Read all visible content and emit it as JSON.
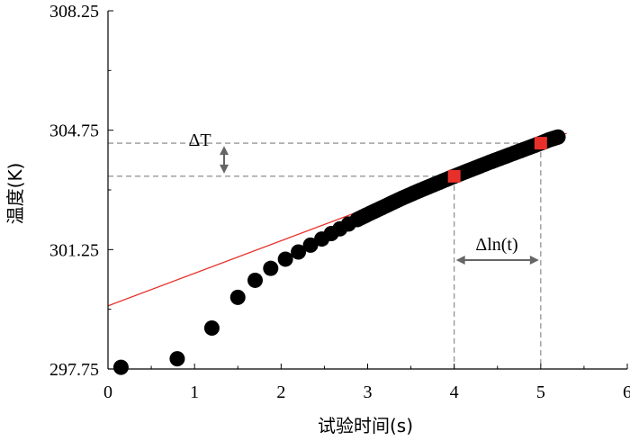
{
  "chart_data": {
    "type": "scatter",
    "xlabel": "试验时间(s)",
    "ylabel": "温度(K)",
    "xlim": [
      0,
      6
    ],
    "ylim": [
      297.75,
      308.25
    ],
    "x_ticks": [
      "0",
      "1",
      "2",
      "3",
      "4",
      "5",
      "6"
    ],
    "y_ticks": [
      "297.75",
      "301.25",
      "304.75",
      "308.25"
    ],
    "grid": false,
    "colors": {
      "points": "#000000",
      "fit_line": "#e8302a",
      "markers": "#e8302a",
      "guides": "#808080"
    },
    "points": [
      [
        0.15,
        297.8
      ],
      [
        0.8,
        298.05
      ],
      [
        1.2,
        298.95
      ],
      [
        1.5,
        299.85
      ],
      [
        1.7,
        300.35
      ],
      [
        1.88,
        300.7
      ],
      [
        2.05,
        300.97
      ],
      [
        2.2,
        301.18
      ],
      [
        2.34,
        301.38
      ],
      [
        2.47,
        301.56
      ],
      [
        2.58,
        301.72
      ],
      [
        2.68,
        301.86
      ],
      [
        2.78,
        302.0
      ],
      [
        2.88,
        302.13
      ],
      [
        3.0,
        302.28
      ],
      [
        3.2,
        302.52
      ],
      [
        3.4,
        302.76
      ],
      [
        3.6,
        302.98
      ],
      [
        3.8,
        303.19
      ],
      [
        4.0,
        303.4
      ],
      [
        4.2,
        303.6
      ],
      [
        4.4,
        303.8
      ],
      [
        4.6,
        303.99
      ],
      [
        4.8,
        304.18
      ],
      [
        5.0,
        304.37
      ],
      [
        5.1,
        304.47
      ],
      [
        5.2,
        304.55
      ]
    ],
    "fit_line": {
      "x": [
        0,
        5.3
      ],
      "y": [
        299.6,
        304.66
      ]
    },
    "markers": [
      {
        "x": 4.0,
        "y": 303.4
      },
      {
        "x": 5.0,
        "y": 304.37
      }
    ],
    "annotations": {
      "delta_T": "ΔT",
      "delta_ln_t": "Δln(t)"
    }
  }
}
